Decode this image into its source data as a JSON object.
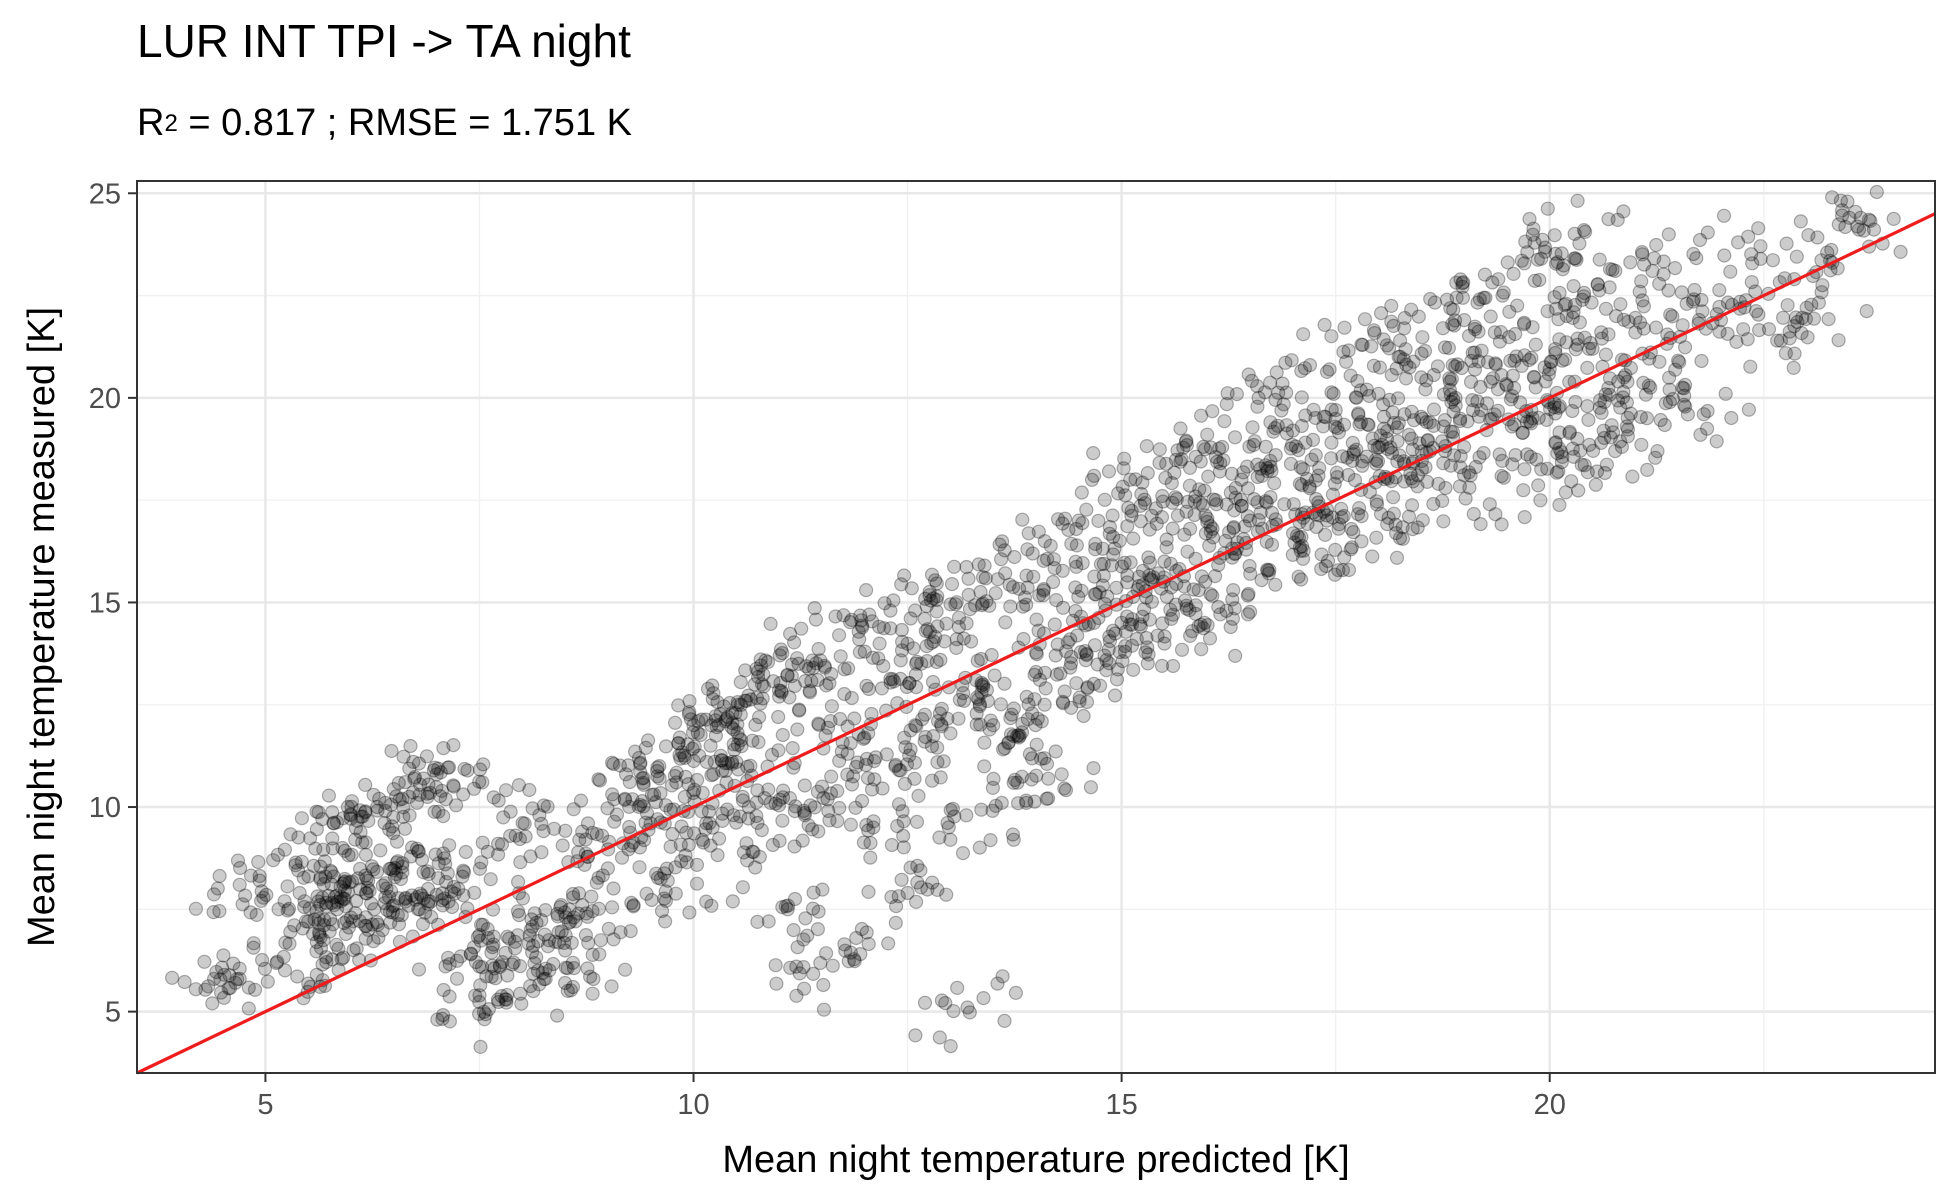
{
  "chart_data": {
    "type": "scatter",
    "title": "LUR INT TPI -> TA night",
    "subtitle": {
      "r_label": "R",
      "r_exponent": "2",
      "r2_text": " = 0.817 ; RMSE = 1.751 K"
    },
    "metrics": {
      "r2": 0.817,
      "rmse_k": 1.751
    },
    "xlabel": "Mean night temperature predicted [K]",
    "ylabel": "Mean night temperature measured [K]",
    "xlim": [
      3.5,
      24.5
    ],
    "ylim": [
      3.5,
      25.3
    ],
    "x_ticks": [
      5,
      10,
      15,
      20
    ],
    "x_tick_labels": [
      "5",
      "10",
      "15",
      "20"
    ],
    "y_ticks": [
      5,
      10,
      15,
      20,
      25
    ],
    "y_tick_labels": [
      "5",
      "10",
      "15",
      "20",
      "25"
    ],
    "grid": true,
    "point_color": "#000000",
    "point_alpha": 0.2,
    "line_color": "#ee1c1c",
    "reference_line": {
      "type": "identity",
      "slope": 1,
      "intercept": 0
    },
    "clusters": [
      {
        "x": [
          3.5,
          20.5
        ],
        "y": [
          3.5,
          20.5
        ]
      }
    ],
    "points": [
      [
        4.4,
        5.8
      ],
      [
        4.7,
        5.8
      ],
      [
        4.7,
        8.1
      ],
      [
        5.4,
        7.9
      ],
      [
        5.5,
        7.2
      ],
      [
        5.6,
        6.7
      ],
      [
        5.6,
        5.9
      ],
      [
        5.7,
        8.3
      ],
      [
        5.8,
        9.6
      ],
      [
        5.8,
        7.6
      ],
      [
        5.9,
        9.0
      ],
      [
        6.0,
        7.3
      ],
      [
        6.0,
        9.8
      ],
      [
        6.2,
        7.0
      ],
      [
        6.2,
        8.2
      ],
      [
        6.4,
        7.8
      ],
      [
        6.4,
        10.1
      ],
      [
        6.5,
        7.6
      ],
      [
        6.6,
        10.2
      ],
      [
        6.6,
        8.4
      ],
      [
        6.8,
        7.5
      ],
      [
        6.8,
        10.3
      ],
      [
        6.9,
        8.0
      ],
      [
        7.0,
        10.8
      ],
      [
        7.1,
        8.6
      ],
      [
        7.2,
        10.5
      ],
      [
        7.3,
        8.3
      ],
      [
        7.4,
        6.4
      ],
      [
        7.5,
        5.4
      ],
      [
        7.6,
        6.8
      ],
      [
        7.8,
        5.3
      ],
      [
        7.9,
        6.2
      ],
      [
        8.1,
        7.0
      ],
      [
        8.2,
        9.8
      ],
      [
        8.3,
        6.6
      ],
      [
        8.5,
        5.7
      ],
      [
        8.6,
        7.3
      ],
      [
        8.7,
        9.4
      ],
      [
        8.9,
        6.4
      ],
      [
        9.0,
        8.5
      ],
      [
        9.2,
        10.2
      ],
      [
        9.3,
        7.6
      ],
      [
        9.4,
        10.7
      ],
      [
        9.5,
        9.6
      ],
      [
        9.6,
        11.0
      ],
      [
        9.7,
        8.2
      ],
      [
        9.8,
        10.6
      ],
      [
        9.9,
        11.2
      ],
      [
        10.0,
        12.0
      ],
      [
        10.1,
        9.2
      ],
      [
        10.2,
        11.5
      ],
      [
        10.3,
        10.4
      ],
      [
        10.4,
        12.2
      ],
      [
        10.5,
        11.1
      ],
      [
        10.6,
        12.6
      ],
      [
        10.7,
        8.9
      ],
      [
        10.8,
        13.0
      ],
      [
        10.9,
        10.1
      ],
      [
        11.0,
        12.7
      ],
      [
        11.1,
        7.5
      ],
      [
        11.2,
        6.1
      ],
      [
        11.3,
        9.8
      ],
      [
        11.4,
        13.4
      ],
      [
        11.5,
        10.5
      ],
      [
        11.6,
        12.1
      ],
      [
        11.7,
        14.2
      ],
      [
        11.8,
        11.3
      ],
      [
        11.9,
        6.8
      ],
      [
        12.0,
        13.8
      ],
      [
        12.1,
        9.5
      ],
      [
        12.2,
        12.9
      ],
      [
        12.3,
        14.8
      ],
      [
        12.4,
        10.9
      ],
      [
        12.5,
        7.9
      ],
      [
        12.6,
        13.5
      ],
      [
        12.7,
        11.6
      ],
      [
        12.8,
        15.1
      ],
      [
        12.9,
        12.4
      ],
      [
        13.0,
        9.2
      ],
      [
        13.1,
        14.4
      ],
      [
        13.2,
        5.1
      ],
      [
        13.3,
        13.1
      ],
      [
        13.4,
        15.9
      ],
      [
        13.5,
        12.0
      ],
      [
        13.6,
        10.1
      ],
      [
        13.7,
        14.9
      ],
      [
        13.8,
        11.7
      ],
      [
        13.9,
        16.3
      ],
      [
        14.0,
        13.3
      ],
      [
        14.1,
        12.5
      ],
      [
        14.2,
        15.5
      ],
      [
        14.3,
        10.8
      ],
      [
        14.4,
        14.1
      ],
      [
        14.5,
        17.0
      ],
      [
        14.6,
        12.9
      ],
      [
        14.7,
        15.2
      ],
      [
        14.8,
        13.7
      ],
      [
        14.9,
        16.6
      ],
      [
        15.0,
        14.5
      ],
      [
        15.1,
        18.0
      ],
      [
        15.2,
        15.4
      ],
      [
        15.3,
        13.9
      ],
      [
        15.4,
        17.3
      ],
      [
        15.5,
        16.0
      ],
      [
        15.6,
        14.7
      ],
      [
        15.7,
        18.5
      ],
      [
        15.8,
        16.8
      ],
      [
        15.9,
        15.3
      ],
      [
        16.0,
        19.1
      ],
      [
        16.1,
        17.5
      ],
      [
        16.2,
        16.2
      ],
      [
        16.3,
        14.6
      ],
      [
        16.4,
        18.0
      ],
      [
        16.5,
        17.0
      ],
      [
        16.6,
        20.0
      ],
      [
        16.7,
        15.8
      ],
      [
        16.8,
        18.6
      ],
      [
        16.9,
        17.4
      ],
      [
        17.0,
        19.2
      ],
      [
        17.1,
        16.6
      ],
      [
        17.2,
        20.8
      ],
      [
        17.3,
        18.1
      ],
      [
        17.4,
        17.0
      ],
      [
        17.5,
        19.7
      ],
      [
        17.6,
        16.1
      ],
      [
        17.7,
        18.9
      ],
      [
        17.8,
        21.3
      ],
      [
        17.9,
        17.7
      ],
      [
        18.0,
        20.1
      ],
      [
        18.1,
        19.0
      ],
      [
        18.2,
        16.9
      ],
      [
        18.3,
        21.7
      ],
      [
        18.4,
        18.4
      ],
      [
        18.5,
        20.5
      ],
      [
        18.6,
        19.4
      ],
      [
        18.7,
        17.9
      ],
      [
        18.8,
        22.4
      ],
      [
        18.9,
        20.0
      ],
      [
        19.0,
        18.8
      ],
      [
        19.1,
        21.1
      ],
      [
        19.2,
        19.7
      ],
      [
        19.3,
        17.4
      ],
      [
        19.4,
        22.9
      ],
      [
        19.5,
        20.3
      ],
      [
        19.6,
        18.6
      ],
      [
        19.7,
        21.8
      ],
      [
        19.8,
        19.5
      ],
      [
        19.9,
        23.4
      ],
      [
        20.0,
        20.7
      ],
      [
        20.1,
        18.2
      ],
      [
        20.2,
        22.0
      ],
      [
        20.3,
        19.9
      ],
      [
        20.4,
        24.1
      ],
      [
        20.5,
        21.2
      ],
      [
        20.6,
        18.9
      ],
      [
        20.7,
        22.7
      ],
      [
        20.8,
        20.4
      ],
      [
        20.9,
        19.3
      ],
      [
        21.0,
        21.6
      ],
      [
        21.2,
        23.1
      ],
      [
        21.4,
        20.2
      ],
      [
        21.6,
        22.3
      ],
      [
        21.8,
        19.6
      ],
      [
        22.0,
        21.9
      ],
      [
        22.2,
        23.8
      ],
      [
        22.4,
        22.6
      ],
      [
        22.7,
        21.4
      ],
      [
        23.0,
        22.2
      ],
      [
        23.3,
        23.3
      ],
      [
        23.5,
        24.4
      ]
    ]
  }
}
